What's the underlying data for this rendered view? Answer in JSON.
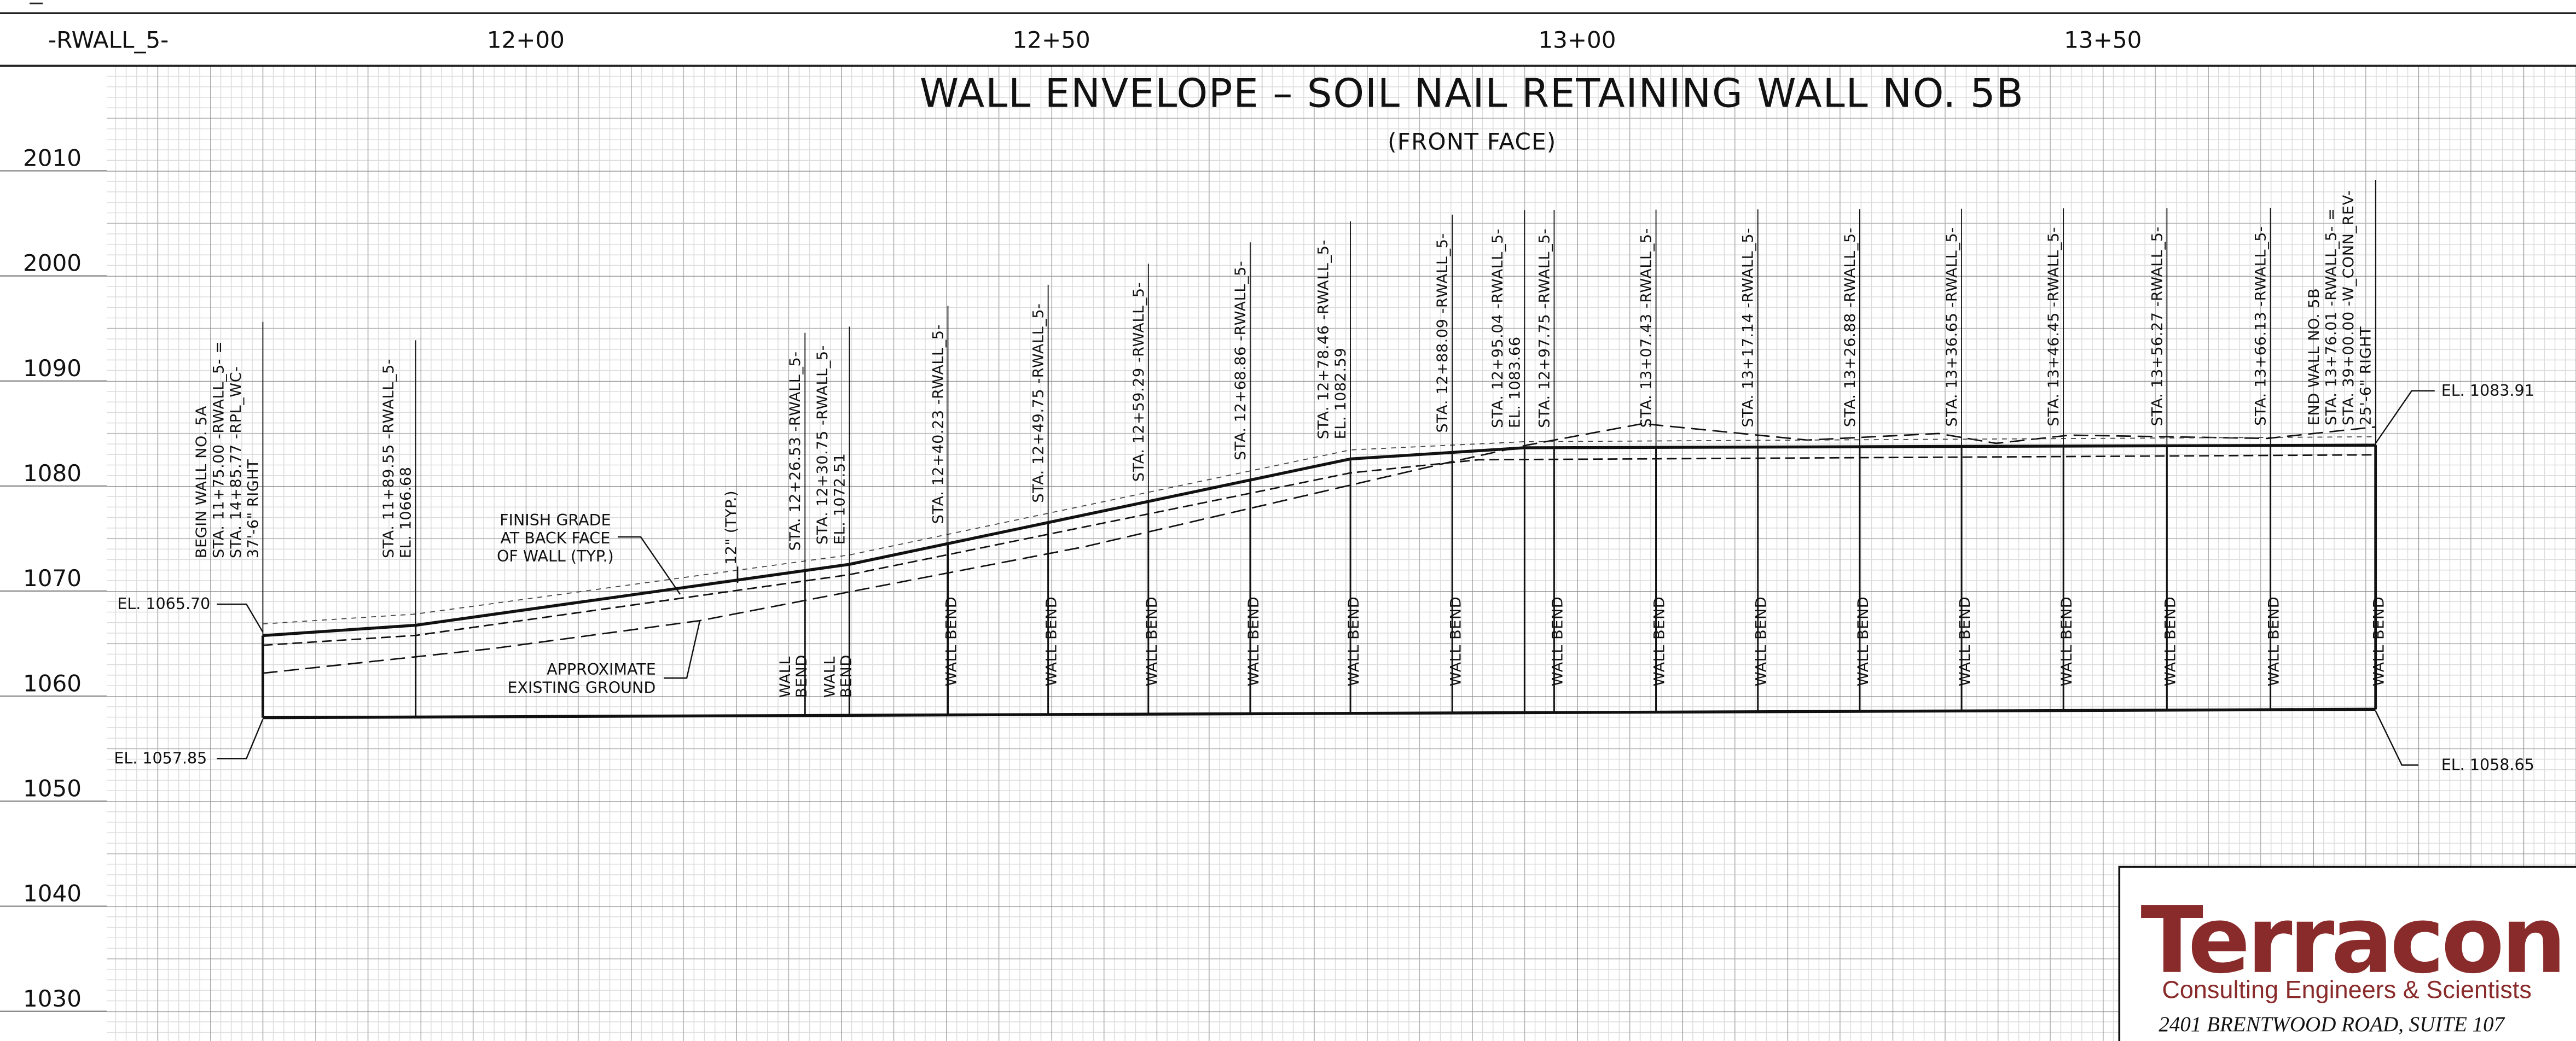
{
  "header": {
    "alignment": "-RWALL_5-",
    "stations": [
      "12+00",
      "12+50",
      "13+00",
      "13+50"
    ]
  },
  "elevations": [
    "2010",
    "2000",
    "1090",
    "1080",
    "1070",
    "1060",
    "1050",
    "1040",
    "1030"
  ],
  "title": "WALL ENVELOPE – SOIL NAIL RETAINING  WALL NO. 5B",
  "subtitle": "(FRONT FACE)",
  "station_labels": [
    [
      "BEGIN WALL NO. 5A",
      "STA. 11+75.00 -RWALL_5- =",
      "STA. 14+85.77 -RPL_WC-",
      "37'-6\" RIGHT"
    ],
    [
      "STA. 11+89.55 -RWALL_5-",
      "EL. 1066.68"
    ],
    [
      "STA. 12+26.53 -RWALL_5-"
    ],
    [
      "STA. 12+30.75 -RWALL_5-",
      "EL. 1072.51"
    ],
    [
      "STA. 12+40.23 -RWALL_5-"
    ],
    [
      "STA. 12+49.75 -RWALL_5-"
    ],
    [
      "STA. 12+59.29 -RWALL_5-"
    ],
    [
      "STA. 12+68.86 -RWALL_5-"
    ],
    [
      "STA. 12+78.46 -RWALL_5-",
      "EL. 1082.59"
    ],
    [
      "STA. 12+88.09 -RWALL_5-"
    ],
    [
      "STA. 12+95.04 -RWALL_5-",
      "EL. 1083.66"
    ],
    [
      "STA. 12+97.75 -RWALL_5-"
    ],
    [
      "STA. 13+07.43 -RWALL_5-"
    ],
    [
      "STA. 13+17.14 -RWALL_5-"
    ],
    [
      "STA. 13+26.88 -RWALL_5-"
    ],
    [
      "STA. 13+36.65 -RWALL_5-"
    ],
    [
      "STA. 13+46.45 -RWALL_5-"
    ],
    [
      "STA. 13+56.27 -RWALL_5-"
    ],
    [
      "STA. 13+66.13 -RWALL_5-"
    ],
    [
      "END WALL NO. 5B",
      "STA. 13+76.01 -RWALL_5- =",
      "STA. 39+00.00 -W_CONN_REV-",
      "25'-6\" RIGHT"
    ]
  ],
  "wall_bends": [
    [
      "WALL",
      "BEND"
    ],
    [
      "WALL",
      "BEND"
    ],
    [
      "WALL BEND"
    ],
    [
      "WALL BEND"
    ],
    [
      "WALL BEND"
    ],
    [
      "WALL BEND"
    ],
    [
      "WALL BEND"
    ],
    [
      "WALL BEND"
    ],
    [
      "WALL BEND"
    ],
    [
      "WALL BEND"
    ],
    [
      "WALL BEND"
    ],
    [
      "WALL BEND"
    ],
    [
      "WALL BEND"
    ],
    [
      "WALL BEND"
    ],
    [
      "WALL BEND"
    ],
    [
      "WALL BEND"
    ],
    [
      "WALL BEND"
    ]
  ],
  "annotations": {
    "finish_grade": [
      "FINISH GRADE",
      "AT BACK FACE",
      "OF WALL (TYP.)"
    ],
    "offset": "12\" (TYP.)",
    "existing_ground": [
      "APPROXIMATE",
      "EXISTING GROUND"
    ],
    "begin_top": "EL. 1065.70",
    "begin_bottom": "EL. 1057.85",
    "end_top": "EL. 1083.91",
    "end_bottom": "EL. 1058.65"
  },
  "logo": {
    "name": "Terracon",
    "tagline": "Consulting Engineers & Scientists",
    "address": "2401 BRENTWOOD ROAD, SUITE 107"
  }
}
